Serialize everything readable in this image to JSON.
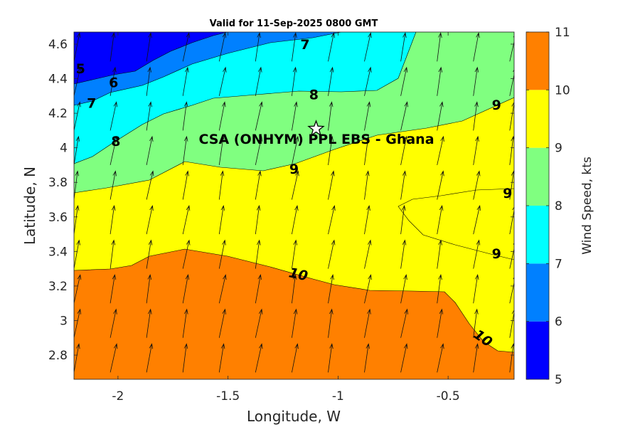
{
  "chart_data": {
    "type": "contourf",
    "title": "Valid for 11-Sep-2025 0800 GMT",
    "xlabel": "Longitude, W",
    "ylabel": "Latitude, N",
    "xlim": [
      -2.2,
      -0.2
    ],
    "ylim": [
      2.66,
      4.67
    ],
    "xticks": [
      -2,
      -1.5,
      -1,
      -0.5
    ],
    "xtick_labels": [
      "-2",
      "-1.5",
      "-1",
      "-0.5"
    ],
    "yticks": [
      2.8,
      3,
      3.2,
      3.4,
      3.6,
      3.8,
      4,
      4.2,
      4.4,
      4.6
    ],
    "ytick_labels": [
      "2.8",
      "3",
      "3.2",
      "3.4",
      "3.6",
      "3.8",
      "4",
      "4.2",
      "4.4",
      "4.6"
    ],
    "colorbar": {
      "label": "Wind Speed, kts",
      "levels": [
        5,
        6,
        7,
        8,
        9,
        10,
        11
      ],
      "tick_labels": [
        "5",
        "6",
        "7",
        "8",
        "9",
        "10",
        "11"
      ],
      "colors": [
        "#0000ff",
        "#0080ff",
        "#00ffff",
        "#80ff80",
        "#ffff00",
        "#ff8000"
      ]
    },
    "contour_labels": [
      {
        "text": "5",
        "lon": -2.17,
        "lat": 4.46,
        "angle": 0
      },
      {
        "text": "6",
        "lon": -2.02,
        "lat": 4.38,
        "angle": 0
      },
      {
        "text": "7",
        "lon": -2.12,
        "lat": 4.26,
        "angle": 0
      },
      {
        "text": "7",
        "lon": -1.15,
        "lat": 4.6,
        "angle": 0
      },
      {
        "text": "8",
        "lon": -1.11,
        "lat": 4.31,
        "angle": 0
      },
      {
        "text": "8",
        "lon": -2.01,
        "lat": 4.04,
        "angle": 0
      },
      {
        "text": "9",
        "lon": -1.2,
        "lat": 3.88,
        "angle": 0
      },
      {
        "text": "9",
        "lon": -0.28,
        "lat": 4.25,
        "angle": 0
      },
      {
        "text": "9",
        "lon": -0.23,
        "lat": 3.74,
        "angle": 0
      },
      {
        "text": "9",
        "lon": -0.28,
        "lat": 3.39,
        "angle": 0
      },
      {
        "text": "10",
        "lon": -1.18,
        "lat": 3.27,
        "angle": 12
      },
      {
        "text": "10",
        "lon": -0.34,
        "lat": 2.9,
        "angle": 35
      }
    ],
    "site": {
      "name": "CSA (ONHYM) PPL EBS  - Ghana",
      "lon": -1.1,
      "lat": 4.11,
      "marker": "star"
    },
    "wind_vectors": {
      "direction": "mostly northward with slight north-north-east tilt",
      "grid_step_lon": 0.165,
      "grid_step_lat": 0.2
    }
  }
}
